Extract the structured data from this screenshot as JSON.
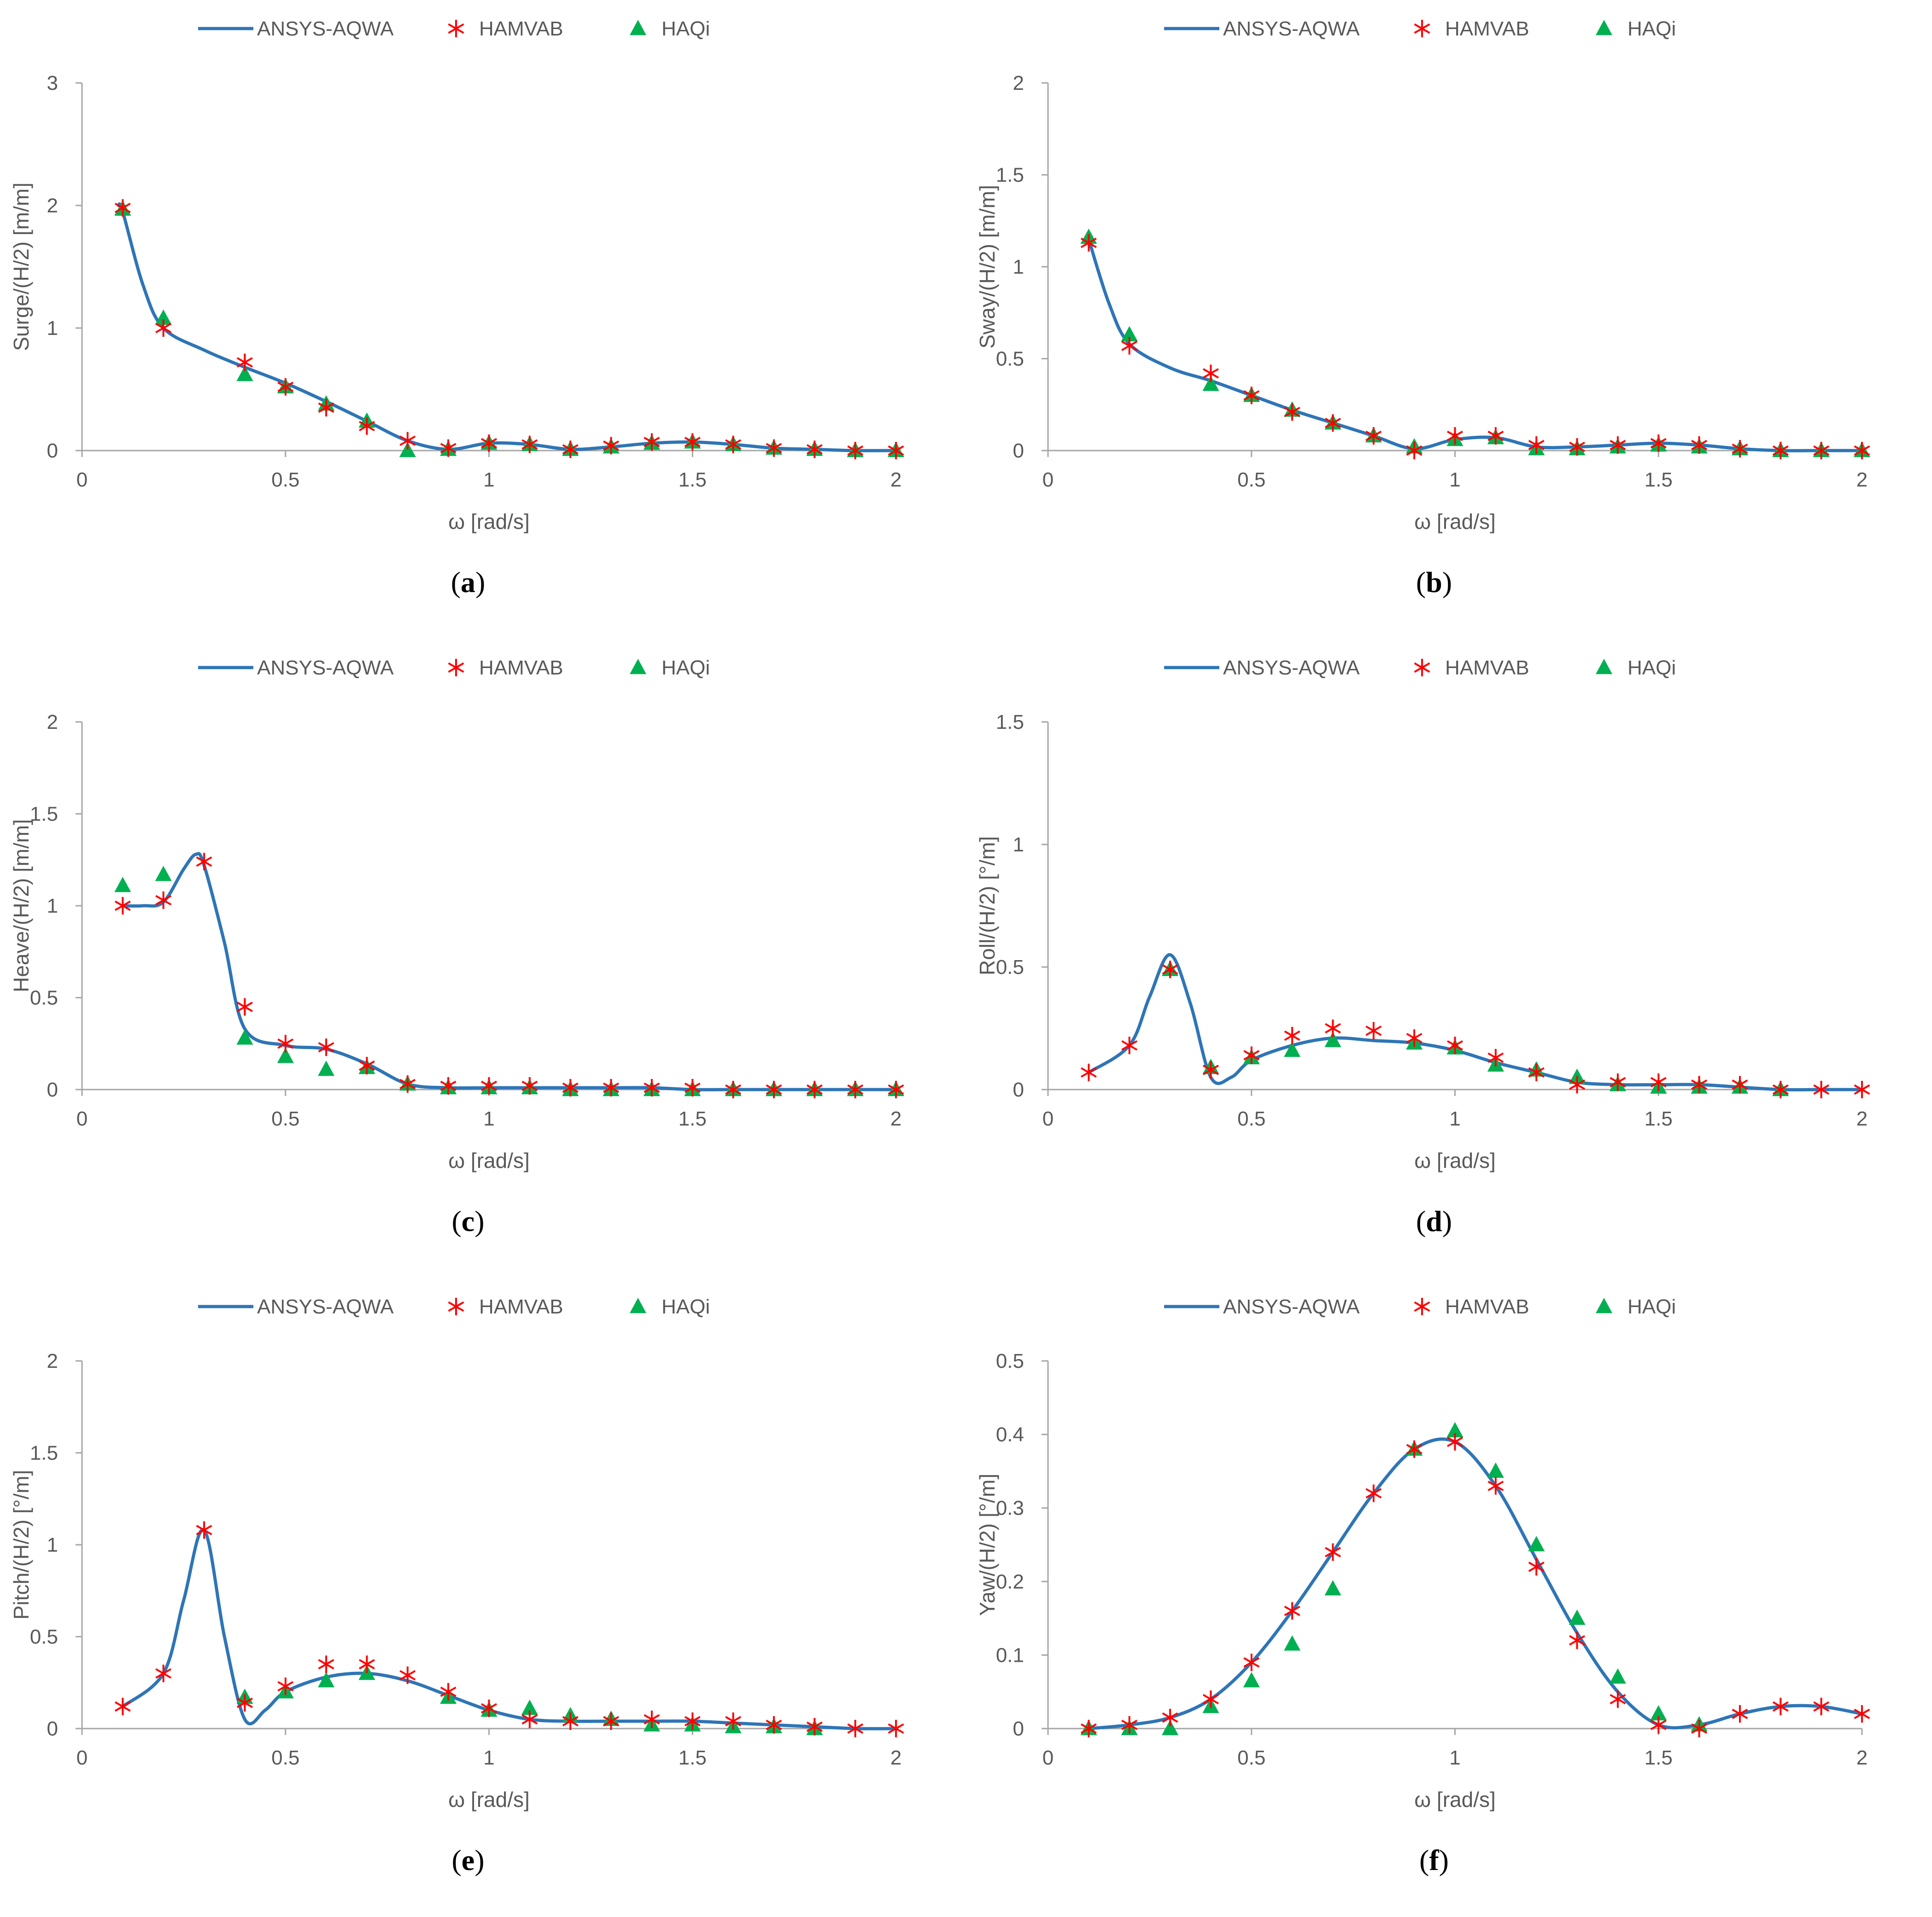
{
  "figure": {
    "legend": [
      "ANSYS-AQWA",
      "HAMVAB",
      "HAQi"
    ],
    "colors": {
      "line": "#2E75B6",
      "hamvab": "#FF0000",
      "haqi": "#00B050",
      "axis": "#A6A6A6",
      "text": "#595959"
    }
  },
  "chart_data": [
    {
      "type": "line",
      "id": "a",
      "caption_letter": "a",
      "ylabel": "Surge/(H/2) [m/m]",
      "xlabel": "ω [rad/s]",
      "xlim": [
        0,
        2
      ],
      "ylim": [
        0,
        3
      ],
      "xticks": [
        0,
        0.5,
        1,
        1.5,
        2
      ],
      "xtick_labels": [
        "0",
        "0.5",
        "1",
        "1.5",
        "2"
      ],
      "yticks": [
        0,
        1,
        2,
        3
      ],
      "ytick_labels": [
        "0",
        "1",
        "2",
        "3"
      ],
      "series": [
        {
          "name": "ANSYS-AQWA",
          "kind": "line",
          "x": [
            0.09,
            0.1,
            0.15,
            0.2,
            0.3,
            0.4,
            0.5,
            0.6,
            0.7,
            0.8,
            0.9,
            1.0,
            1.1,
            1.2,
            1.3,
            1.4,
            1.5,
            1.6,
            1.7,
            1.8,
            1.9,
            2.0
          ],
          "y": [
            2.0,
            1.95,
            1.35,
            1.0,
            0.82,
            0.68,
            0.55,
            0.4,
            0.24,
            0.08,
            0.01,
            0.06,
            0.05,
            0.01,
            0.03,
            0.06,
            0.07,
            0.05,
            0.02,
            0.01,
            0.0,
            0.0
          ]
        },
        {
          "name": "HAMVAB",
          "kind": "scatter",
          "x": [
            0.1,
            0.2,
            0.4,
            0.5,
            0.6,
            0.7,
            0.8,
            0.9,
            1.0,
            1.1,
            1.2,
            1.3,
            1.4,
            1.5,
            1.6,
            1.7,
            1.8,
            1.9,
            2.0
          ],
          "y": [
            1.98,
            1.0,
            0.72,
            0.52,
            0.35,
            0.2,
            0.08,
            0.02,
            0.06,
            0.05,
            0.01,
            0.04,
            0.07,
            0.07,
            0.05,
            0.02,
            0.01,
            0.0,
            0.0
          ]
        },
        {
          "name": "HAQi",
          "kind": "scatter",
          "x": [
            0.1,
            0.2,
            0.4,
            0.5,
            0.6,
            0.7,
            0.8,
            0.9,
            1.0,
            1.1,
            1.2,
            1.3,
            1.4,
            1.5,
            1.6,
            1.7,
            1.8,
            1.9,
            2.0
          ],
          "y": [
            1.97,
            1.08,
            0.62,
            0.52,
            0.38,
            0.24,
            0.0,
            0.01,
            0.06,
            0.05,
            0.01,
            0.03,
            0.06,
            0.07,
            0.05,
            0.02,
            0.01,
            0.0,
            0.0
          ]
        }
      ]
    },
    {
      "type": "line",
      "id": "b",
      "caption_letter": "b",
      "ylabel": "Sway/(H/2) [m/m]",
      "xlabel": "ω [rad/s]",
      "xlim": [
        0,
        2
      ],
      "ylim": [
        0,
        2
      ],
      "xticks": [
        0,
        0.5,
        1,
        1.5,
        2
      ],
      "xtick_labels": [
        "0",
        "0.5",
        "1",
        "1.5",
        "2"
      ],
      "yticks": [
        0,
        0.5,
        1,
        1.5,
        2
      ],
      "ytick_labels": [
        "0",
        "0.5",
        "1",
        "1.5",
        "2"
      ],
      "series": [
        {
          "name": "ANSYS-AQWA",
          "kind": "line",
          "x": [
            0.1,
            0.15,
            0.2,
            0.3,
            0.4,
            0.5,
            0.6,
            0.7,
            0.8,
            0.9,
            1.0,
            1.1,
            1.2,
            1.3,
            1.4,
            1.5,
            1.6,
            1.7,
            1.8,
            1.9,
            2.0
          ],
          "y": [
            1.15,
            0.8,
            0.58,
            0.45,
            0.38,
            0.3,
            0.22,
            0.15,
            0.08,
            0.01,
            0.06,
            0.07,
            0.02,
            0.02,
            0.03,
            0.04,
            0.03,
            0.01,
            0.0,
            0.0,
            0.0
          ]
        },
        {
          "name": "HAMVAB",
          "kind": "scatter",
          "x": [
            0.1,
            0.2,
            0.4,
            0.5,
            0.6,
            0.7,
            0.8,
            0.9,
            1.0,
            1.1,
            1.2,
            1.3,
            1.4,
            1.5,
            1.6,
            1.7,
            1.8,
            1.9,
            2.0
          ],
          "y": [
            1.13,
            0.57,
            0.42,
            0.3,
            0.21,
            0.15,
            0.08,
            0.0,
            0.08,
            0.08,
            0.03,
            0.02,
            0.03,
            0.04,
            0.03,
            0.01,
            0.0,
            0.0,
            0.0
          ]
        },
        {
          "name": "HAQi",
          "kind": "scatter",
          "x": [
            0.1,
            0.2,
            0.4,
            0.5,
            0.6,
            0.7,
            0.8,
            0.9,
            1.0,
            1.1,
            1.2,
            1.3,
            1.4,
            1.5,
            1.6,
            1.7,
            1.8,
            1.9,
            2.0
          ],
          "y": [
            1.16,
            0.63,
            0.36,
            0.3,
            0.22,
            0.15,
            0.08,
            0.02,
            0.06,
            0.07,
            0.01,
            0.01,
            0.02,
            0.03,
            0.02,
            0.01,
            0.0,
            0.0,
            0.0
          ]
        }
      ]
    },
    {
      "type": "line",
      "id": "c",
      "caption_letter": "c",
      "ylabel": "Heave/(H/2) [m/m]",
      "xlabel": "ω [rad/s]",
      "xlim": [
        0,
        2
      ],
      "ylim": [
        0,
        2
      ],
      "xticks": [
        0,
        0.5,
        1,
        1.5,
        2
      ],
      "xtick_labels": [
        "0",
        "0.5",
        "1",
        "1.5",
        "2"
      ],
      "yticks": [
        0,
        0.5,
        1,
        1.5,
        2
      ],
      "ytick_labels": [
        "0",
        "0.5",
        "1",
        "1.5",
        "2"
      ],
      "series": [
        {
          "name": "ANSYS-AQWA",
          "kind": "line",
          "x": [
            0.1,
            0.15,
            0.2,
            0.25,
            0.28,
            0.3,
            0.35,
            0.4,
            0.5,
            0.6,
            0.7,
            0.8,
            0.9,
            1.0,
            1.1,
            1.2,
            1.3,
            1.4,
            1.5,
            1.6,
            1.7,
            1.8,
            1.9,
            2.0
          ],
          "y": [
            1.0,
            1.0,
            1.02,
            1.2,
            1.28,
            1.22,
            0.8,
            0.33,
            0.24,
            0.22,
            0.14,
            0.03,
            0.01,
            0.01,
            0.01,
            0.01,
            0.01,
            0.01,
            0.0,
            0.0,
            0.0,
            0.0,
            0.0,
            0.0
          ]
        },
        {
          "name": "HAMVAB",
          "kind": "scatter",
          "x": [
            0.1,
            0.2,
            0.3,
            0.4,
            0.5,
            0.6,
            0.7,
            0.8,
            0.9,
            1.0,
            1.1,
            1.2,
            1.3,
            1.4,
            1.5,
            1.6,
            1.7,
            1.8,
            1.9,
            2.0
          ],
          "y": [
            1.0,
            1.03,
            1.24,
            0.45,
            0.25,
            0.23,
            0.13,
            0.03,
            0.02,
            0.02,
            0.02,
            0.01,
            0.01,
            0.01,
            0.01,
            0.0,
            0.0,
            0.0,
            0.0,
            0.0
          ]
        },
        {
          "name": "HAQi",
          "kind": "scatter",
          "x": [
            0.1,
            0.2,
            0.4,
            0.5,
            0.6,
            0.7,
            0.8,
            0.9,
            1.0,
            1.1,
            1.2,
            1.3,
            1.4,
            1.5,
            1.6,
            1.7,
            1.8,
            1.9,
            2.0
          ],
          "y": [
            1.11,
            1.17,
            0.28,
            0.18,
            0.11,
            0.12,
            0.03,
            0.01,
            0.01,
            0.01,
            0.0,
            0.0,
            0.0,
            0.0,
            0.0,
            0.0,
            0.0,
            0.0,
            0.0
          ]
        }
      ]
    },
    {
      "type": "line",
      "id": "d",
      "caption_letter": "d",
      "ylabel": "Roll/(H/2) [°/m]",
      "xlabel": "ω [rad/s]",
      "xlim": [
        0,
        2
      ],
      "ylim": [
        0,
        1.5
      ],
      "xticks": [
        0,
        0.5,
        1,
        1.5,
        2
      ],
      "xtick_labels": [
        "0",
        "0.5",
        "1",
        "1.5",
        "2"
      ],
      "yticks": [
        0,
        0.5,
        1,
        1.5
      ],
      "ytick_labels": [
        "0",
        "0.5",
        "1",
        "1.5"
      ],
      "series": [
        {
          "name": "ANSYS-AQWA",
          "kind": "line",
          "x": [
            0.1,
            0.2,
            0.25,
            0.3,
            0.35,
            0.4,
            0.45,
            0.5,
            0.6,
            0.7,
            0.8,
            0.9,
            1.0,
            1.1,
            1.2,
            1.3,
            1.4,
            1.5,
            1.6,
            1.7,
            1.8,
            1.9,
            2.0
          ],
          "y": [
            0.07,
            0.18,
            0.38,
            0.55,
            0.35,
            0.05,
            0.05,
            0.12,
            0.18,
            0.21,
            0.2,
            0.19,
            0.16,
            0.11,
            0.07,
            0.03,
            0.02,
            0.02,
            0.02,
            0.01,
            0.0,
            0.0,
            0.0
          ]
        },
        {
          "name": "HAMVAB",
          "kind": "scatter",
          "x": [
            0.1,
            0.2,
            0.3,
            0.4,
            0.5,
            0.6,
            0.7,
            0.8,
            0.9,
            1.0,
            1.1,
            1.2,
            1.3,
            1.4,
            1.5,
            1.6,
            1.7,
            1.8,
            1.9,
            2.0
          ],
          "y": [
            0.07,
            0.18,
            0.49,
            0.08,
            0.14,
            0.22,
            0.25,
            0.24,
            0.21,
            0.18,
            0.13,
            0.07,
            0.02,
            0.03,
            0.03,
            0.02,
            0.02,
            0.0,
            0.0,
            0.0
          ]
        },
        {
          "name": "HAQi",
          "kind": "scatter",
          "x": [
            0.3,
            0.4,
            0.5,
            0.6,
            0.7,
            0.9,
            1.0,
            1.1,
            1.2,
            1.3,
            1.4,
            1.5,
            1.6,
            1.7,
            1.8
          ],
          "y": [
            0.49,
            0.09,
            0.13,
            0.16,
            0.2,
            0.19,
            0.17,
            0.1,
            0.08,
            0.05,
            0.02,
            0.01,
            0.01,
            0.01,
            0.0
          ]
        }
      ]
    },
    {
      "type": "line",
      "id": "e",
      "caption_letter": "e",
      "ylabel": "Pitch/(H/2) [°/m]",
      "xlabel": "ω [rad/s]",
      "xlim": [
        0,
        2
      ],
      "ylim": [
        0,
        2
      ],
      "xticks": [
        0,
        0.5,
        1,
        1.5,
        2
      ],
      "xtick_labels": [
        "0",
        "0.5",
        "1",
        "1.5",
        "2"
      ],
      "yticks": [
        0,
        0.5,
        1,
        1.5,
        2
      ],
      "ytick_labels": [
        "0",
        "0.5",
        "1",
        "1.5",
        "2"
      ],
      "series": [
        {
          "name": "ANSYS-AQWA",
          "kind": "line",
          "x": [
            0.1,
            0.2,
            0.25,
            0.3,
            0.35,
            0.4,
            0.45,
            0.5,
            0.6,
            0.7,
            0.8,
            0.9,
            1.0,
            1.1,
            1.2,
            1.3,
            1.4,
            1.5,
            1.6,
            1.7,
            1.8,
            1.9,
            2.0
          ],
          "y": [
            0.12,
            0.3,
            0.7,
            1.08,
            0.5,
            0.05,
            0.1,
            0.2,
            0.28,
            0.3,
            0.26,
            0.18,
            0.1,
            0.05,
            0.04,
            0.04,
            0.04,
            0.04,
            0.03,
            0.02,
            0.01,
            0.0,
            0.0
          ]
        },
        {
          "name": "HAMVAB",
          "kind": "scatter",
          "x": [
            0.1,
            0.2,
            0.3,
            0.4,
            0.5,
            0.6,
            0.7,
            0.8,
            0.9,
            1.0,
            1.1,
            1.2,
            1.3,
            1.4,
            1.5,
            1.6,
            1.7,
            1.8,
            1.9,
            2.0
          ],
          "y": [
            0.12,
            0.3,
            1.08,
            0.14,
            0.23,
            0.35,
            0.35,
            0.29,
            0.2,
            0.11,
            0.05,
            0.04,
            0.04,
            0.05,
            0.04,
            0.04,
            0.02,
            0.01,
            0.0,
            0.0
          ]
        },
        {
          "name": "HAQi",
          "kind": "scatter",
          "x": [
            0.4,
            0.5,
            0.6,
            0.7,
            0.9,
            1.0,
            1.1,
            1.2,
            1.3,
            1.4,
            1.5,
            1.6,
            1.7,
            1.8
          ],
          "y": [
            0.17,
            0.2,
            0.26,
            0.3,
            0.17,
            0.1,
            0.11,
            0.07,
            0.05,
            0.02,
            0.02,
            0.01,
            0.01,
            0.0
          ]
        }
      ]
    },
    {
      "type": "line",
      "id": "f",
      "caption_letter": "f",
      "ylabel": "Yaw/(H/2) [°/m]",
      "xlabel": "ω [rad/s]",
      "xlim": [
        0,
        2
      ],
      "ylim": [
        0,
        0.5
      ],
      "xticks": [
        0,
        0.5,
        1,
        1.5,
        2
      ],
      "xtick_labels": [
        "0",
        "0.5",
        "1",
        "1.5",
        "2"
      ],
      "yticks": [
        0,
        0.1,
        0.2,
        0.3,
        0.4,
        0.5
      ],
      "ytick_labels": [
        "0",
        "0.1",
        "0.2",
        "0.3",
        "0.4",
        "0.5"
      ],
      "series": [
        {
          "name": "ANSYS-AQWA",
          "kind": "line",
          "x": [
            0.1,
            0.2,
            0.3,
            0.4,
            0.5,
            0.6,
            0.7,
            0.8,
            0.9,
            1.0,
            1.1,
            1.2,
            1.3,
            1.4,
            1.5,
            1.6,
            1.7,
            1.8,
            1.9,
            2.0
          ],
          "y": [
            0.0,
            0.005,
            0.015,
            0.04,
            0.09,
            0.16,
            0.24,
            0.32,
            0.38,
            0.39,
            0.33,
            0.23,
            0.13,
            0.05,
            0.005,
            0.005,
            0.02,
            0.03,
            0.03,
            0.02
          ]
        },
        {
          "name": "HAMVAB",
          "kind": "scatter",
          "x": [
            0.1,
            0.2,
            0.3,
            0.4,
            0.5,
            0.6,
            0.7,
            0.8,
            0.9,
            1.0,
            1.1,
            1.2,
            1.3,
            1.4,
            1.5,
            1.6,
            1.7,
            1.8,
            1.9,
            2.0
          ],
          "y": [
            0.0,
            0.005,
            0.015,
            0.04,
            0.09,
            0.16,
            0.24,
            0.32,
            0.38,
            0.39,
            0.33,
            0.22,
            0.12,
            0.04,
            0.005,
            0.0,
            0.02,
            0.03,
            0.03,
            0.02
          ]
        },
        {
          "name": "HAQi",
          "kind": "scatter",
          "x": [
            0.1,
            0.2,
            0.3,
            0.4,
            0.5,
            0.6,
            0.7,
            0.9,
            1.0,
            1.1,
            1.2,
            1.3,
            1.4,
            1.5,
            1.6
          ],
          "y": [
            0.0,
            0.0,
            0.0,
            0.03,
            0.065,
            0.115,
            0.19,
            0.38,
            0.405,
            0.35,
            0.25,
            0.15,
            0.07,
            0.02,
            0.005
          ]
        }
      ]
    }
  ]
}
